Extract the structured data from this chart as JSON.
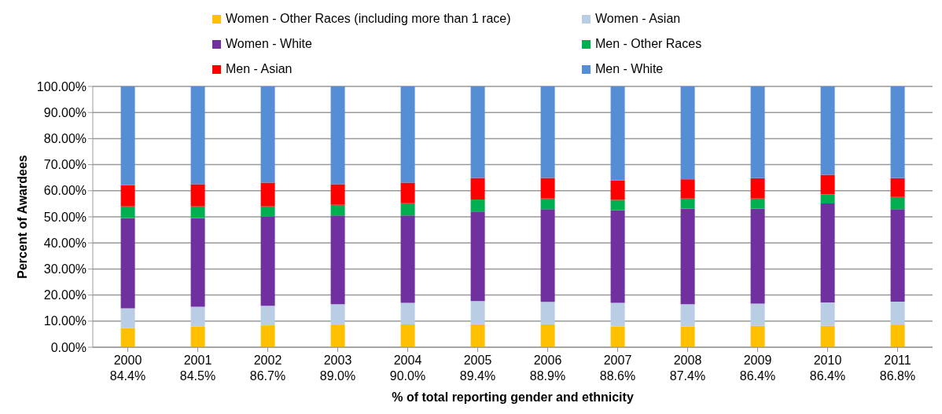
{
  "chart_data": {
    "type": "bar",
    "stacked": true,
    "xlabel": "% of total reporting gender and ethnicity",
    "ylabel": "Percent of Awardees",
    "categories": [
      "2000\n84.4%",
      "2001\n84.5%",
      "2002\n86.7%",
      "2003\n89.0%",
      "2004\n90.0%",
      "2005\n89.4%",
      "2006\n88.9%",
      "2007\n88.6%",
      "2008\n87.4%",
      "2009\n86.4%",
      "2010\n86.4%",
      "2011\n86.8%"
    ],
    "series": [
      {
        "name": "Women - Other Races (including more than 1 race)",
        "color": "#ffc000",
        "values": [
          7.4,
          8.0,
          8.4,
          8.7,
          8.7,
          8.8,
          8.8,
          8.0,
          8.0,
          8.2,
          8.2,
          8.7
        ]
      },
      {
        "name": "Women - Asian",
        "color": "#b9cde5",
        "values": [
          7.5,
          7.5,
          7.5,
          7.8,
          8.3,
          8.9,
          8.6,
          9.0,
          8.5,
          8.5,
          9.0,
          8.8
        ]
      },
      {
        "name": "Women - White",
        "color": "#7030a0",
        "values": [
          34.6,
          34.0,
          34.1,
          34.0,
          33.5,
          34.3,
          35.5,
          35.5,
          36.6,
          36.4,
          37.9,
          35.4
        ]
      },
      {
        "name": "Men - Other Races",
        "color": "#00b050",
        "values": [
          4.5,
          4.5,
          4.0,
          4.1,
          4.7,
          4.6,
          4.1,
          4.0,
          3.9,
          3.9,
          3.5,
          4.7
        ]
      },
      {
        "name": "Men - Asian",
        "color": "#ff0000",
        "values": [
          8.1,
          8.5,
          9.1,
          7.9,
          7.9,
          8.3,
          7.9,
          7.4,
          7.4,
          7.8,
          7.5,
          7.2
        ]
      },
      {
        "name": "Men - White",
        "color": "#558ed5",
        "values": [
          37.9,
          37.5,
          36.9,
          37.5,
          36.9,
          35.1,
          35.1,
          36.1,
          35.6,
          35.2,
          33.9,
          35.2
        ]
      }
    ],
    "ylim": [
      0,
      100
    ],
    "yticks": [
      {
        "value": 0,
        "label": "0.00%"
      },
      {
        "value": 10,
        "label": "10.00%"
      },
      {
        "value": 20,
        "label": "20.00%"
      },
      {
        "value": 30,
        "label": "30.00%"
      },
      {
        "value": 40,
        "label": "40.00%"
      },
      {
        "value": 50,
        "label": "50.00%"
      },
      {
        "value": 60,
        "label": "60.00%"
      },
      {
        "value": 70,
        "label": "70.00%"
      },
      {
        "value": 80,
        "label": "80.00%"
      },
      {
        "value": 90,
        "label": "90.00%"
      },
      {
        "value": 100,
        "label": "100.00%"
      }
    ],
    "grid": "y",
    "legend": "top"
  }
}
